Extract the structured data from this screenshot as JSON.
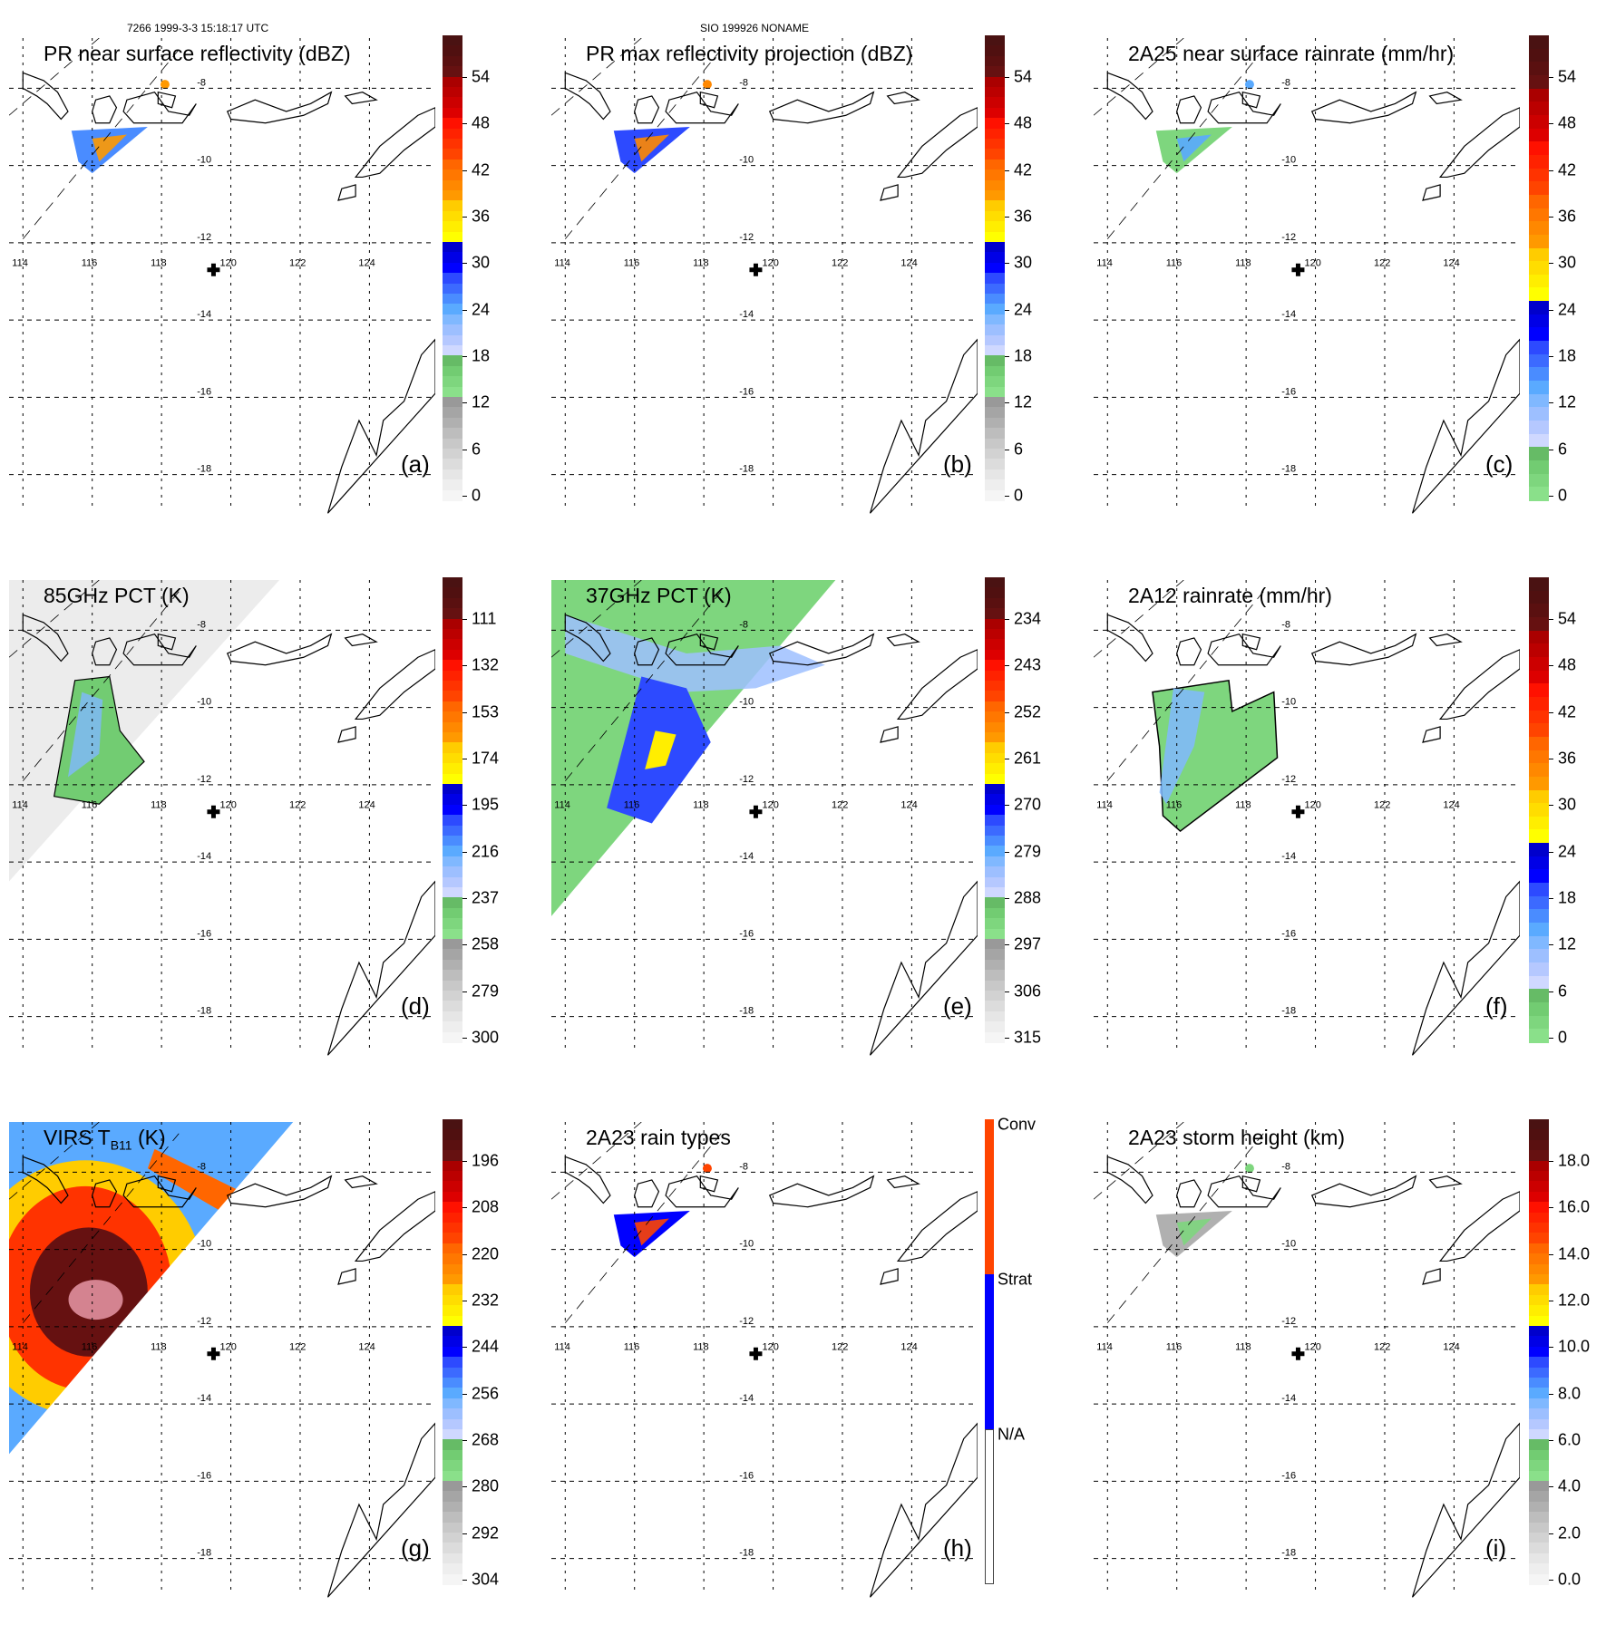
{
  "header": {
    "left": "7266 1999-3-3 15:18:17 UTC",
    "center": "SIO 199926 NONAME"
  },
  "map": {
    "lon_ticks": [
      "114",
      "116",
      "118",
      "120",
      "122",
      "124"
    ],
    "lat_ticks": [
      "-8",
      "-10",
      "-12",
      "-14",
      "-16",
      "-18"
    ],
    "lon_range": [
      113.6,
      125.9
    ],
    "lat_range": [
      -6.7,
      -18.9
    ],
    "storm_center": {
      "lon": 119.5,
      "lat": -12.7,
      "marker": "plus-marker"
    },
    "grid": "dotted",
    "swath_edge": "dashed"
  },
  "colors": {
    "ramp": [
      "#f5f5f5",
      "#eeeeee",
      "#e6e6e6",
      "#dcdcdc",
      "#d2d2d2",
      "#c8c8c8",
      "#bdbdbd",
      "#b0b0b0",
      "#a5a5a5",
      "#999999",
      "#8ae08a",
      "#7ed67e",
      "#72cc72",
      "#66bb66",
      "#cfd8ff",
      "#b5c8ff",
      "#9dbfff",
      "#80b8ff",
      "#5aaaff",
      "#4a8cff",
      "#3c6aff",
      "#2d4aff",
      "#0000ff",
      "#0000e6",
      "#0000cc",
      "#ffff00",
      "#ffee00",
      "#ffdd00",
      "#ffcc00",
      "#ff9900",
      "#ff8800",
      "#ff7700",
      "#ff6600",
      "#ff4400",
      "#ff3300",
      "#ff2200",
      "#ff1100",
      "#dd0000",
      "#cc0000",
      "#bb0000",
      "#aa0000",
      "#661111",
      "#5a1010",
      "#501010",
      "#4a1212"
    ],
    "rain_conv": "#ff4400",
    "rain_strat": "#0000ff",
    "rain_na": "#ffffff"
  },
  "panels": [
    {
      "id": "a",
      "title": "PR near surface reflectivity (dBZ)",
      "label": "(a)",
      "colorbar": {
        "ticks": [
          "54",
          "48",
          "42",
          "36",
          "30",
          "24",
          "18",
          "12",
          "6",
          "0"
        ],
        "range": [
          0,
          60
        ]
      }
    },
    {
      "id": "b",
      "title": "PR max reflectivity projection (dBZ)",
      "label": "(b)",
      "colorbar": {
        "ticks": [
          "54",
          "48",
          "42",
          "36",
          "30",
          "24",
          "18",
          "12",
          "6",
          "0"
        ],
        "range": [
          0,
          60
        ]
      }
    },
    {
      "id": "c",
      "title": "2A25 near surface rainrate (mm/hr)",
      "label": "(c)",
      "colorbar": {
        "ticks": [
          "54",
          "48",
          "42",
          "36",
          "30",
          "24",
          "18",
          "12",
          "6",
          "0"
        ],
        "range": [
          0,
          60
        ],
        "no_gray": true
      }
    },
    {
      "id": "d",
      "title": "85GHz PCT (K)",
      "label": "(d)",
      "colorbar": {
        "ticks": [
          "111",
          "132",
          "153",
          "174",
          "195",
          "216",
          "237",
          "258",
          "279",
          "300"
        ],
        "range": [
          300,
          90
        ]
      }
    },
    {
      "id": "e",
      "title": "37GHz PCT (K)",
      "label": "(e)",
      "colorbar": {
        "ticks": [
          "234",
          "243",
          "252",
          "261",
          "270",
          "279",
          "288",
          "297",
          "306",
          "315"
        ],
        "range": [
          315,
          225
        ]
      }
    },
    {
      "id": "f",
      "title": "2A12 rainrate (mm/hr)",
      "label": "(f)",
      "colorbar": {
        "ticks": [
          "54",
          "48",
          "42",
          "36",
          "30",
          "24",
          "18",
          "12",
          "6",
          "0"
        ],
        "range": [
          0,
          60
        ],
        "no_gray": true
      }
    },
    {
      "id": "g",
      "title": "VIRS T",
      "title_sub": "B11",
      "title_tail": " (K)",
      "label": "(g)",
      "colorbar": {
        "ticks": [
          "196",
          "208",
          "220",
          "232",
          "244",
          "256",
          "268",
          "280",
          "292",
          "304"
        ],
        "range": [
          304,
          184
        ]
      }
    },
    {
      "id": "h",
      "title": "2A23 rain types",
      "label": "(h)",
      "colorbar": {
        "categorical": true,
        "categories": [
          "Conv",
          "Strat",
          "N/A"
        ]
      }
    },
    {
      "id": "i",
      "title": "2A23 storm height (km)",
      "label": "(i)",
      "colorbar": {
        "ticks": [
          "18.0",
          "16.0",
          "14.0",
          "12.0",
          "10.0",
          "8.0",
          "6.0",
          "4.0",
          "2.0",
          "0.0"
        ],
        "range": [
          0,
          20
        ]
      }
    }
  ]
}
